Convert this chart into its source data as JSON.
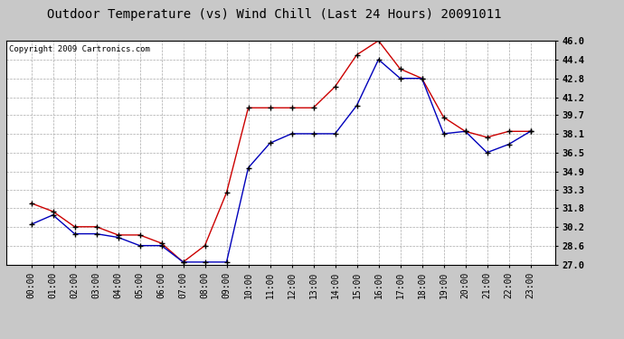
{
  "title": "Outdoor Temperature (vs) Wind Chill (Last 24 Hours) 20091011",
  "copyright": "Copyright 2009 Cartronics.com",
  "x_labels": [
    "00:00",
    "01:00",
    "02:00",
    "03:00",
    "04:00",
    "05:00",
    "06:00",
    "07:00",
    "08:00",
    "09:00",
    "10:00",
    "11:00",
    "12:00",
    "13:00",
    "14:00",
    "15:00",
    "16:00",
    "17:00",
    "18:00",
    "19:00",
    "20:00",
    "21:00",
    "22:00",
    "23:00"
  ],
  "temp_red": [
    32.2,
    31.5,
    30.2,
    30.2,
    29.5,
    29.5,
    28.8,
    27.2,
    28.6,
    33.1,
    40.3,
    40.3,
    40.3,
    40.3,
    42.1,
    44.8,
    46.0,
    43.6,
    42.8,
    39.5,
    38.3,
    37.8,
    38.3,
    38.3
  ],
  "temp_blue": [
    30.4,
    31.2,
    29.6,
    29.6,
    29.3,
    28.6,
    28.6,
    27.2,
    27.2,
    27.2,
    35.2,
    37.3,
    38.1,
    38.1,
    38.1,
    40.5,
    44.4,
    42.8,
    42.8,
    38.1,
    38.3,
    36.5,
    37.2,
    38.3
  ],
  "ylim_min": 27.0,
  "ylim_max": 46.0,
  "yticks": [
    27.0,
    28.6,
    30.2,
    31.8,
    33.3,
    34.9,
    36.5,
    38.1,
    39.7,
    41.2,
    42.8,
    44.4,
    46.0
  ],
  "red_color": "#cc0000",
  "blue_color": "#0000bb",
  "bg_color": "#c8c8c8",
  "plot_bg": "#ffffff",
  "grid_color": "#aaaaaa",
  "title_fontsize": 10,
  "copyright_fontsize": 6.5,
  "tick_fontsize": 7,
  "ytick_fontsize": 7.5
}
